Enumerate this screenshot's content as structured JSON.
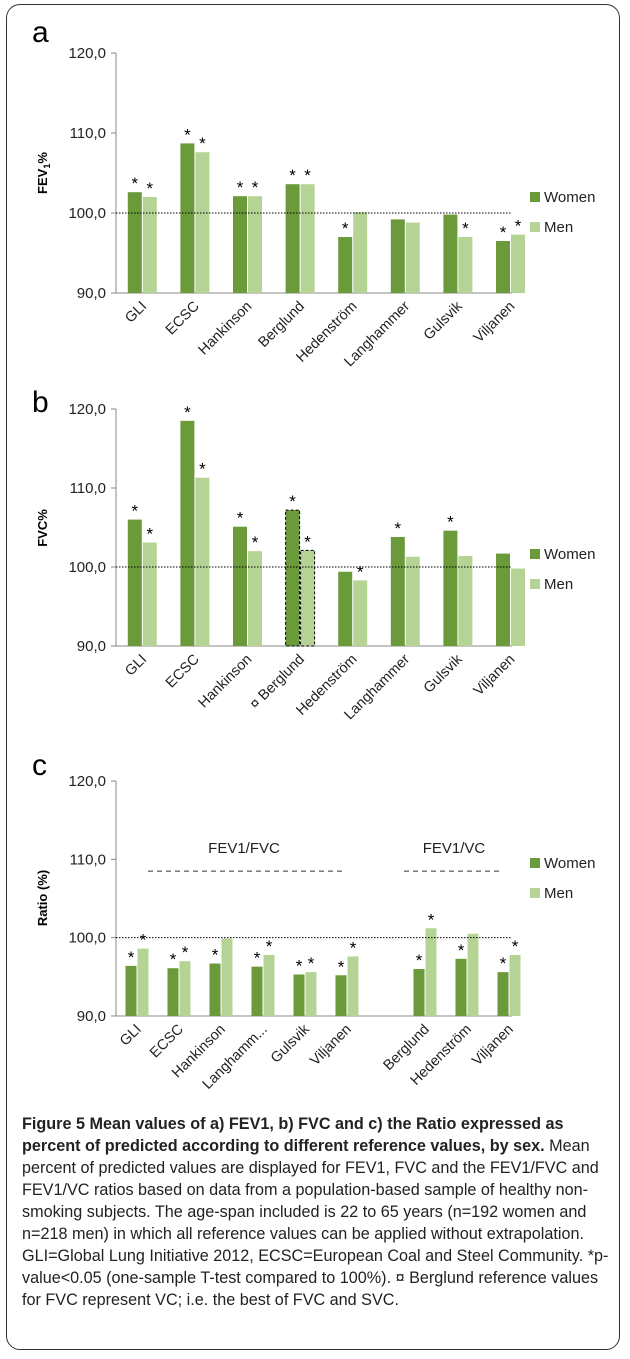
{
  "colors": {
    "women": "#6a9a3a",
    "men": "#b5d394",
    "axis": "#888888"
  },
  "legend": {
    "women": "Women",
    "men": "Men"
  },
  "chart_data": [
    {
      "id": "a",
      "type": "bar",
      "panel_label": "a",
      "ylabel": "FEV",
      "ylabel_sub": "1",
      "ylabel_suffix": "%",
      "ylim": [
        90,
        120
      ],
      "yticks": [
        "120,0",
        "110,0",
        "100,0",
        "90,0"
      ],
      "reference_line": 100,
      "categories": [
        "GLI",
        "ECSC",
        "Hankinson",
        "Berglund",
        "Hedenström",
        "Langhammer",
        "Gulsvik",
        "Viljanen"
      ],
      "series": [
        {
          "name": "Women",
          "values": [
            102.6,
            108.7,
            102.1,
            103.6,
            97.0,
            99.2,
            99.8,
            96.5
          ],
          "sig": [
            true,
            true,
            true,
            true,
            true,
            false,
            false,
            true
          ]
        },
        {
          "name": "Men",
          "values": [
            102.0,
            107.6,
            102.1,
            103.6,
            100.1,
            98.8,
            97.0,
            97.3
          ],
          "sig": [
            true,
            true,
            true,
            true,
            false,
            false,
            true,
            true
          ]
        }
      ]
    },
    {
      "id": "b",
      "type": "bar",
      "panel_label": "b",
      "ylabel": "FVC%",
      "ylim": [
        90,
        120
      ],
      "yticks": [
        "120,0",
        "110,0",
        "100,0",
        "90,0"
      ],
      "reference_line": 100,
      "categories": [
        "GLI",
        "ECSC",
        "Hankinson",
        "¤ Berglund",
        "Hedenström",
        "Langhammer",
        "Gulsvik",
        "Viljanen"
      ],
      "highlighted_category": "¤ Berglund",
      "series": [
        {
          "name": "Women",
          "values": [
            106.0,
            118.5,
            105.1,
            107.2,
            99.4,
            103.8,
            104.6,
            101.7
          ],
          "sig": [
            true,
            true,
            true,
            true,
            false,
            true,
            true,
            false
          ]
        },
        {
          "name": "Men",
          "values": [
            103.1,
            111.3,
            102.0,
            102.1,
            98.3,
            101.3,
            101.4,
            99.8
          ],
          "sig": [
            true,
            true,
            true,
            true,
            true,
            false,
            false,
            false
          ]
        }
      ]
    },
    {
      "id": "c",
      "type": "bar",
      "panel_label": "c",
      "ylabel": "Ratio (%)",
      "ylim": [
        90,
        120
      ],
      "yticks": [
        "120,0",
        "110,0",
        "100,0",
        "90,0"
      ],
      "reference_line": 100,
      "group_labels": [
        "FEV1/FVC",
        "FEV1/VC"
      ],
      "categories": [
        "GLI",
        "ECSC",
        "Hankinson",
        "Langhamm...",
        "Gulsvik",
        "Viljanen",
        "",
        "Berglund",
        "Hedenström",
        "Viljanen"
      ],
      "series": [
        {
          "name": "Women",
          "values": [
            96.4,
            96.1,
            96.7,
            96.3,
            95.3,
            95.2,
            null,
            96.0,
            97.3,
            95.6
          ],
          "sig": [
            true,
            true,
            true,
            true,
            true,
            true,
            false,
            true,
            true,
            true
          ]
        },
        {
          "name": "Men",
          "values": [
            98.6,
            97.0,
            99.9,
            97.8,
            95.6,
            97.6,
            null,
            101.2,
            100.5,
            97.8
          ],
          "sig": [
            true,
            true,
            false,
            true,
            true,
            true,
            false,
            true,
            false,
            true
          ]
        }
      ]
    }
  ],
  "caption": {
    "title": "Figure 5 Mean values of a) FEV1, b) FVC and c) the Ratio expressed as percent of predicted according to different reference values, by sex.",
    "body": "Mean percent of predicted values are displayed for FEV1, FVC and the FEV1/FVC and FEV1/VC ratios based on data from a population-based sample of healthy non-smoking subjects. The age-span included is 22 to 65 years (n=192 women and n=218 men) in which all reference values can be applied without extrapolation. GLI=Global Lung Initiative 2012, ECSC=European Coal and Steel Community. *p-value<0.05 (one-sample T-test compared to 100%). ¤ Berglund reference values for FVC represent VC; i.e. the best of FVC and SVC."
  }
}
